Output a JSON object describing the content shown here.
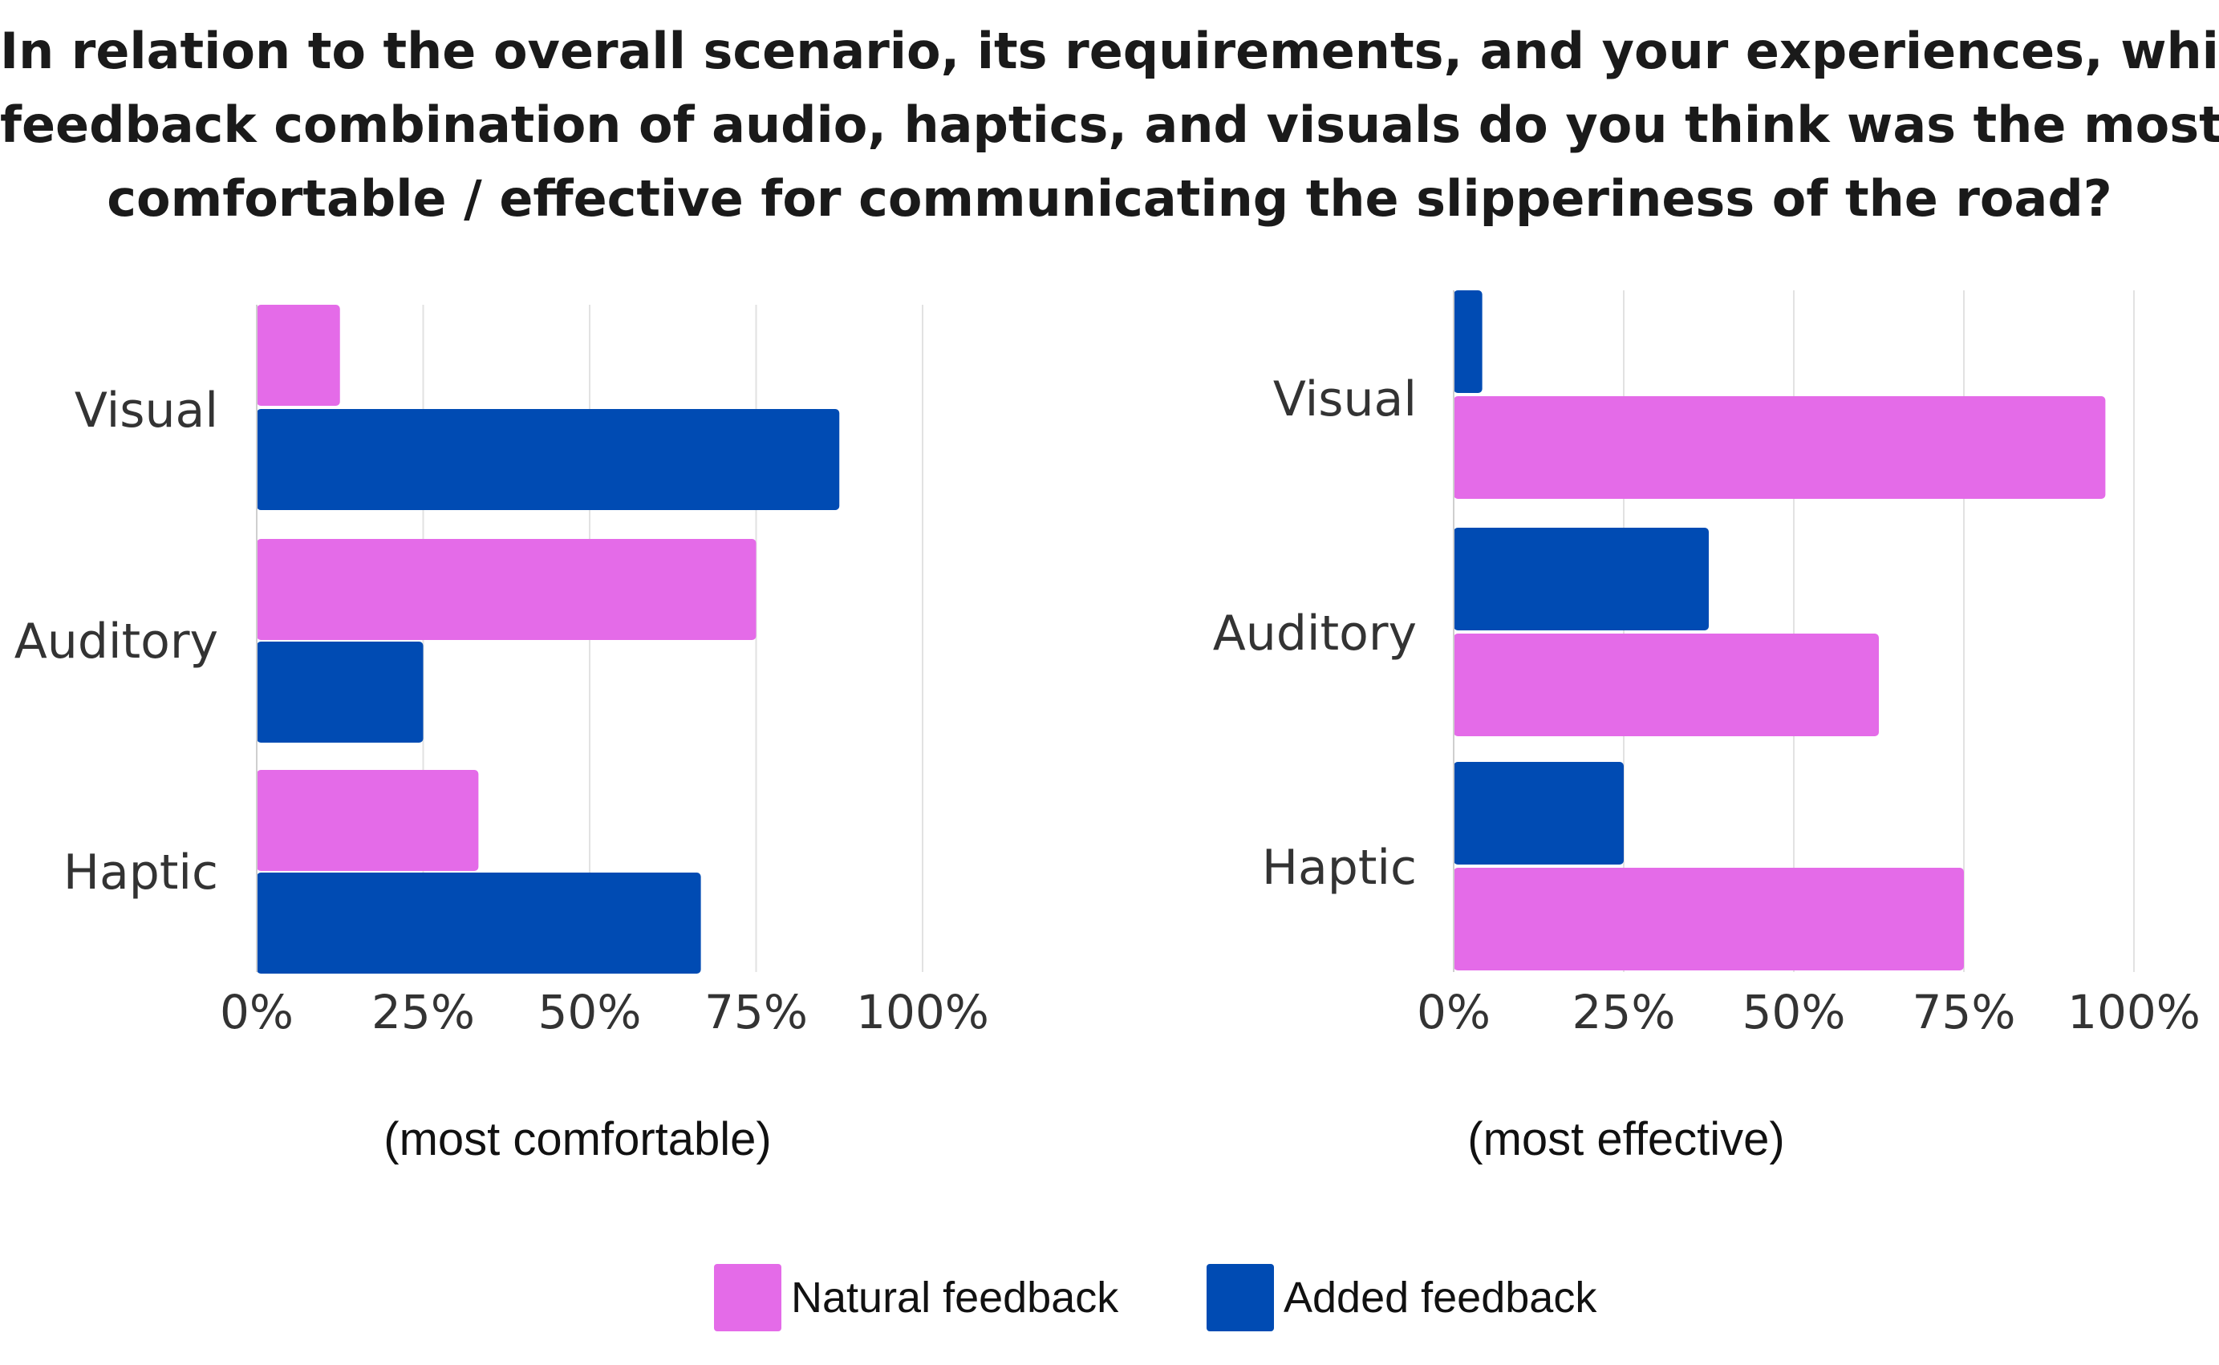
{
  "title": {
    "line1": "In relation to the overall scenario, its requirements, and your experiences, which",
    "line2_a": "feedback combination of audio, haptics, and visuals do you think was the ",
    "line2_bold": "most",
    "line3_bold": "comfortable / effective",
    "line3_b": " for communicating the slipperiness of the road?"
  },
  "colors": {
    "natural": "#e46be8",
    "added": "#004bb3",
    "grid": "#e2e2e2"
  },
  "legend": [
    {
      "name": "Natural feedback",
      "color": "#e46be8"
    },
    {
      "name": "Added feedback",
      "color": "#004bb3"
    }
  ],
  "chart_data": [
    {
      "type": "bar",
      "orientation": "horizontal",
      "subtitle": "(most comfortable)",
      "categories": [
        "Visual",
        "Auditory",
        "Haptic"
      ],
      "series": [
        {
          "name": "Natural feedback",
          "values": [
            12.5,
            75,
            33.3
          ]
        },
        {
          "name": "Added feedback",
          "values": [
            87.5,
            25,
            66.7
          ]
        }
      ],
      "order": [
        [
          "Natural feedback",
          "Added feedback"
        ],
        [
          "Natural feedback",
          "Added feedback"
        ],
        [
          "Natural feedback",
          "Added feedback"
        ]
      ],
      "xticks": [
        "0%",
        "25%",
        "50%",
        "75%",
        "100%"
      ],
      "xlim": [
        0,
        100
      ],
      "grid": true
    },
    {
      "type": "bar",
      "orientation": "horizontal",
      "subtitle": "(most effective)",
      "categories": [
        "Visual",
        "Auditory",
        "Haptic"
      ],
      "series": [
        {
          "name": "Natural feedback",
          "values": [
            95.8,
            62.5,
            75
          ]
        },
        {
          "name": "Added feedback",
          "values": [
            4.2,
            37.5,
            25
          ]
        }
      ],
      "order": [
        [
          "Added feedback",
          "Natural feedback"
        ],
        [
          "Added feedback",
          "Natural feedback"
        ],
        [
          "Added feedback",
          "Natural feedback"
        ]
      ],
      "xticks": [
        "0%",
        "25%",
        "50%",
        "75%",
        "100%"
      ],
      "xlim": [
        0,
        100
      ],
      "grid": true
    }
  ]
}
